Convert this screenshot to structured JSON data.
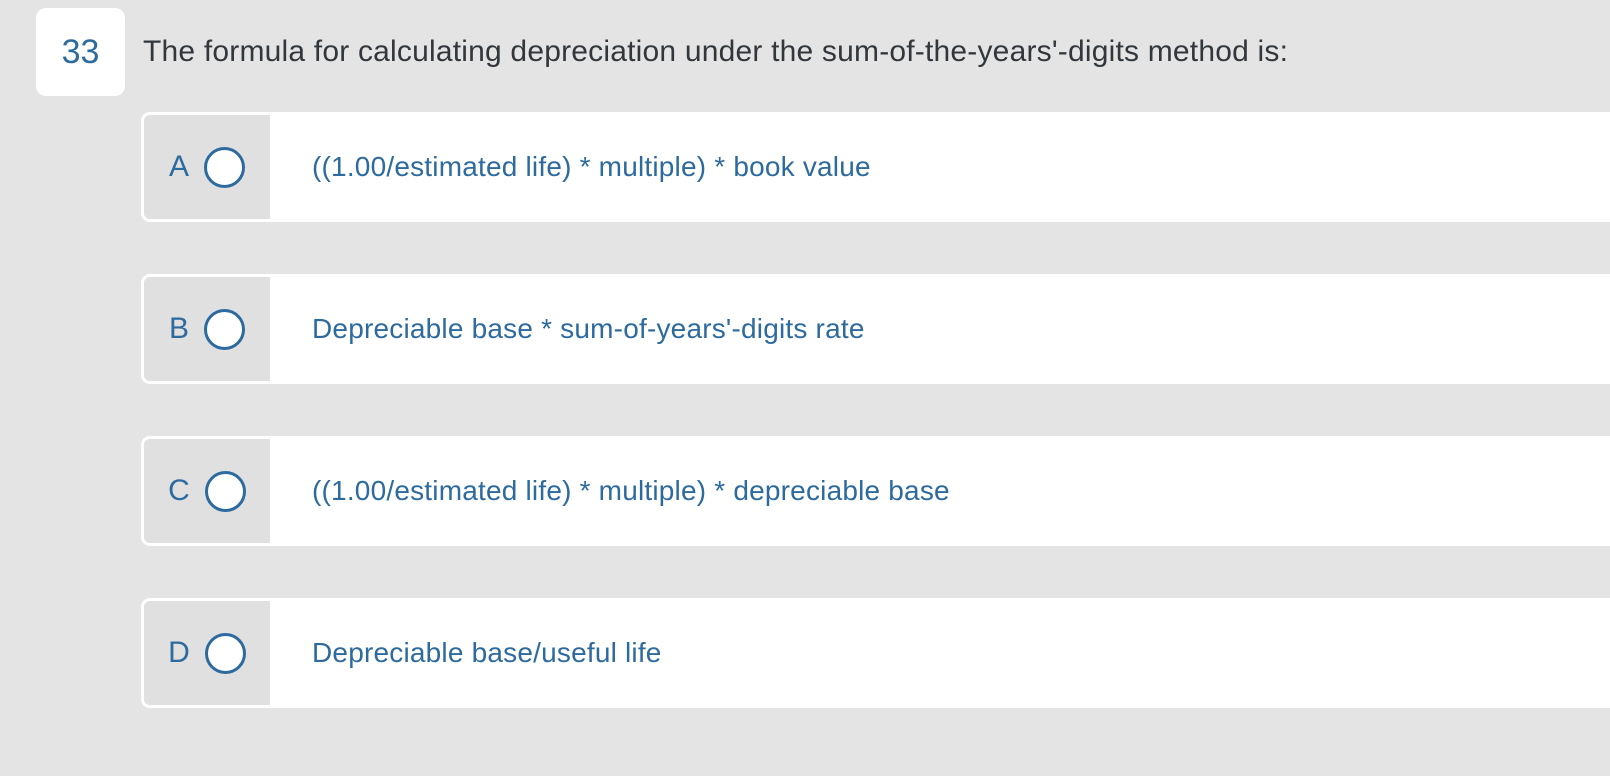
{
  "colors": {
    "page_background": "#e4e4e4",
    "accent_blue": "#2d6a9e",
    "question_text_color": "#32373c",
    "option_cell_gray": "#e0e0e0",
    "row_border_white": "#ffffff"
  },
  "question": {
    "number": "33",
    "text": "The formula for calculating depreciation under the sum-of-the-years'-digits method is:"
  },
  "options": [
    {
      "letter": "A",
      "text": "((1.00/estimated life) * multiple) * book value",
      "selected": false
    },
    {
      "letter": "B",
      "text": "Depreciable base * sum-of-years'-digits rate",
      "selected": false
    },
    {
      "letter": "C",
      "text": "((1.00/estimated life) * multiple) * depreciable base",
      "selected": false
    },
    {
      "letter": "D",
      "text": "Depreciable base/useful life",
      "selected": false
    }
  ]
}
